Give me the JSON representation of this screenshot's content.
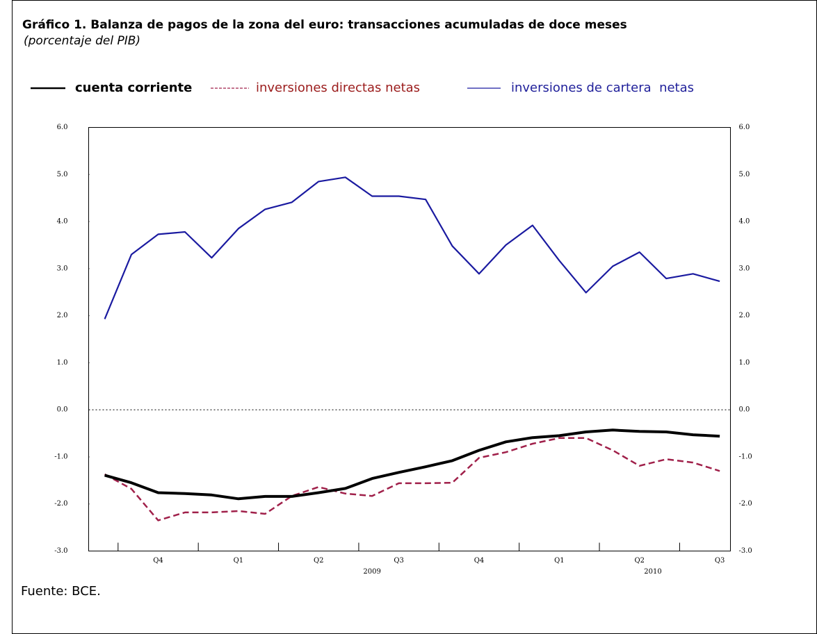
{
  "chart_data": {
    "type": "line",
    "title": "Gráfico 1. Balanza de pagos de la zona del euro: transacciones acumuladas de doce meses",
    "subtitle": "(porcentaje del PIB)",
    "source": "Fuente: BCE.",
    "categories": [
      null,
      null,
      "Q4",
      null,
      null,
      "Q1",
      null,
      null,
      "Q2",
      null,
      null,
      "Q3",
      null,
      null,
      "Q4",
      null,
      null,
      "Q1",
      null,
      null,
      "Q2",
      null,
      null,
      "Q3"
    ],
    "x_group_labels": [
      "2009",
      "2010"
    ],
    "series": [
      {
        "name": "cuenta corriente",
        "color": "#000000",
        "style": "solid",
        "values": [
          -1.39,
          -1.55,
          -1.76,
          -1.78,
          -1.81,
          -1.89,
          -1.84,
          -1.84,
          -1.76,
          -1.67,
          -1.46,
          -1.33,
          -1.21,
          -1.08,
          -0.86,
          -0.68,
          -0.59,
          -0.55,
          -0.47,
          -0.43,
          -0.46,
          -0.47,
          -0.53,
          -0.56
        ]
      },
      {
        "name": "inversiones directas netas",
        "color": "#a0204a",
        "style": "dashed",
        "values": [
          -1.37,
          -1.68,
          -2.35,
          -2.18,
          -2.18,
          -2.15,
          -2.21,
          -1.83,
          -1.64,
          -1.78,
          -1.83,
          -1.56,
          -1.56,
          -1.55,
          -1.02,
          -0.9,
          -0.72,
          -0.6,
          -0.6,
          -0.86,
          -1.19,
          -1.05,
          -1.12,
          -1.3
        ]
      },
      {
        "name": "inversiones de cartera  netas",
        "color": "#1a1aa0",
        "style": "solid",
        "values": [
          1.93,
          3.3,
          3.73,
          3.78,
          3.23,
          3.85,
          4.26,
          4.41,
          4.85,
          4.94,
          4.54,
          4.54,
          4.47,
          3.48,
          2.89,
          3.5,
          3.92,
          3.17,
          2.49,
          3.05,
          3.35,
          2.79,
          2.89,
          2.73
        ]
      }
    ],
    "ylim": [
      -3,
      6
    ],
    "yticks": [
      {
        "value": -3,
        "label": "-3.0"
      },
      {
        "value": -2,
        "label": "-2.0"
      },
      {
        "value": -1,
        "label": "-1.0"
      },
      {
        "value": 0,
        "label": "0.0"
      },
      {
        "value": 1,
        "label": "1.0"
      },
      {
        "value": 2,
        "label": "2.0"
      },
      {
        "value": 3,
        "label": "3.0"
      },
      {
        "value": 4,
        "label": "4.0"
      },
      {
        "value": 5,
        "label": "5.0"
      },
      {
        "value": 6,
        "label": "6.0"
      }
    ],
    "y2lim": [
      -3,
      6
    ],
    "y2ticks": [
      {
        "value": -3,
        "label": "-3.0"
      },
      {
        "value": -2,
        "label": "-2.0"
      },
      {
        "value": -1,
        "label": "-1.0"
      },
      {
        "value": 0,
        "label": "0.0"
      },
      {
        "value": 1,
        "label": "1.0"
      },
      {
        "value": 2,
        "label": "2.0"
      },
      {
        "value": 3,
        "label": "3.0"
      },
      {
        "value": 4,
        "label": "4.0"
      },
      {
        "value": 5,
        "label": "5.0"
      },
      {
        "value": 6,
        "label": "6.0"
      }
    ],
    "zero_line": true,
    "grid": false
  }
}
